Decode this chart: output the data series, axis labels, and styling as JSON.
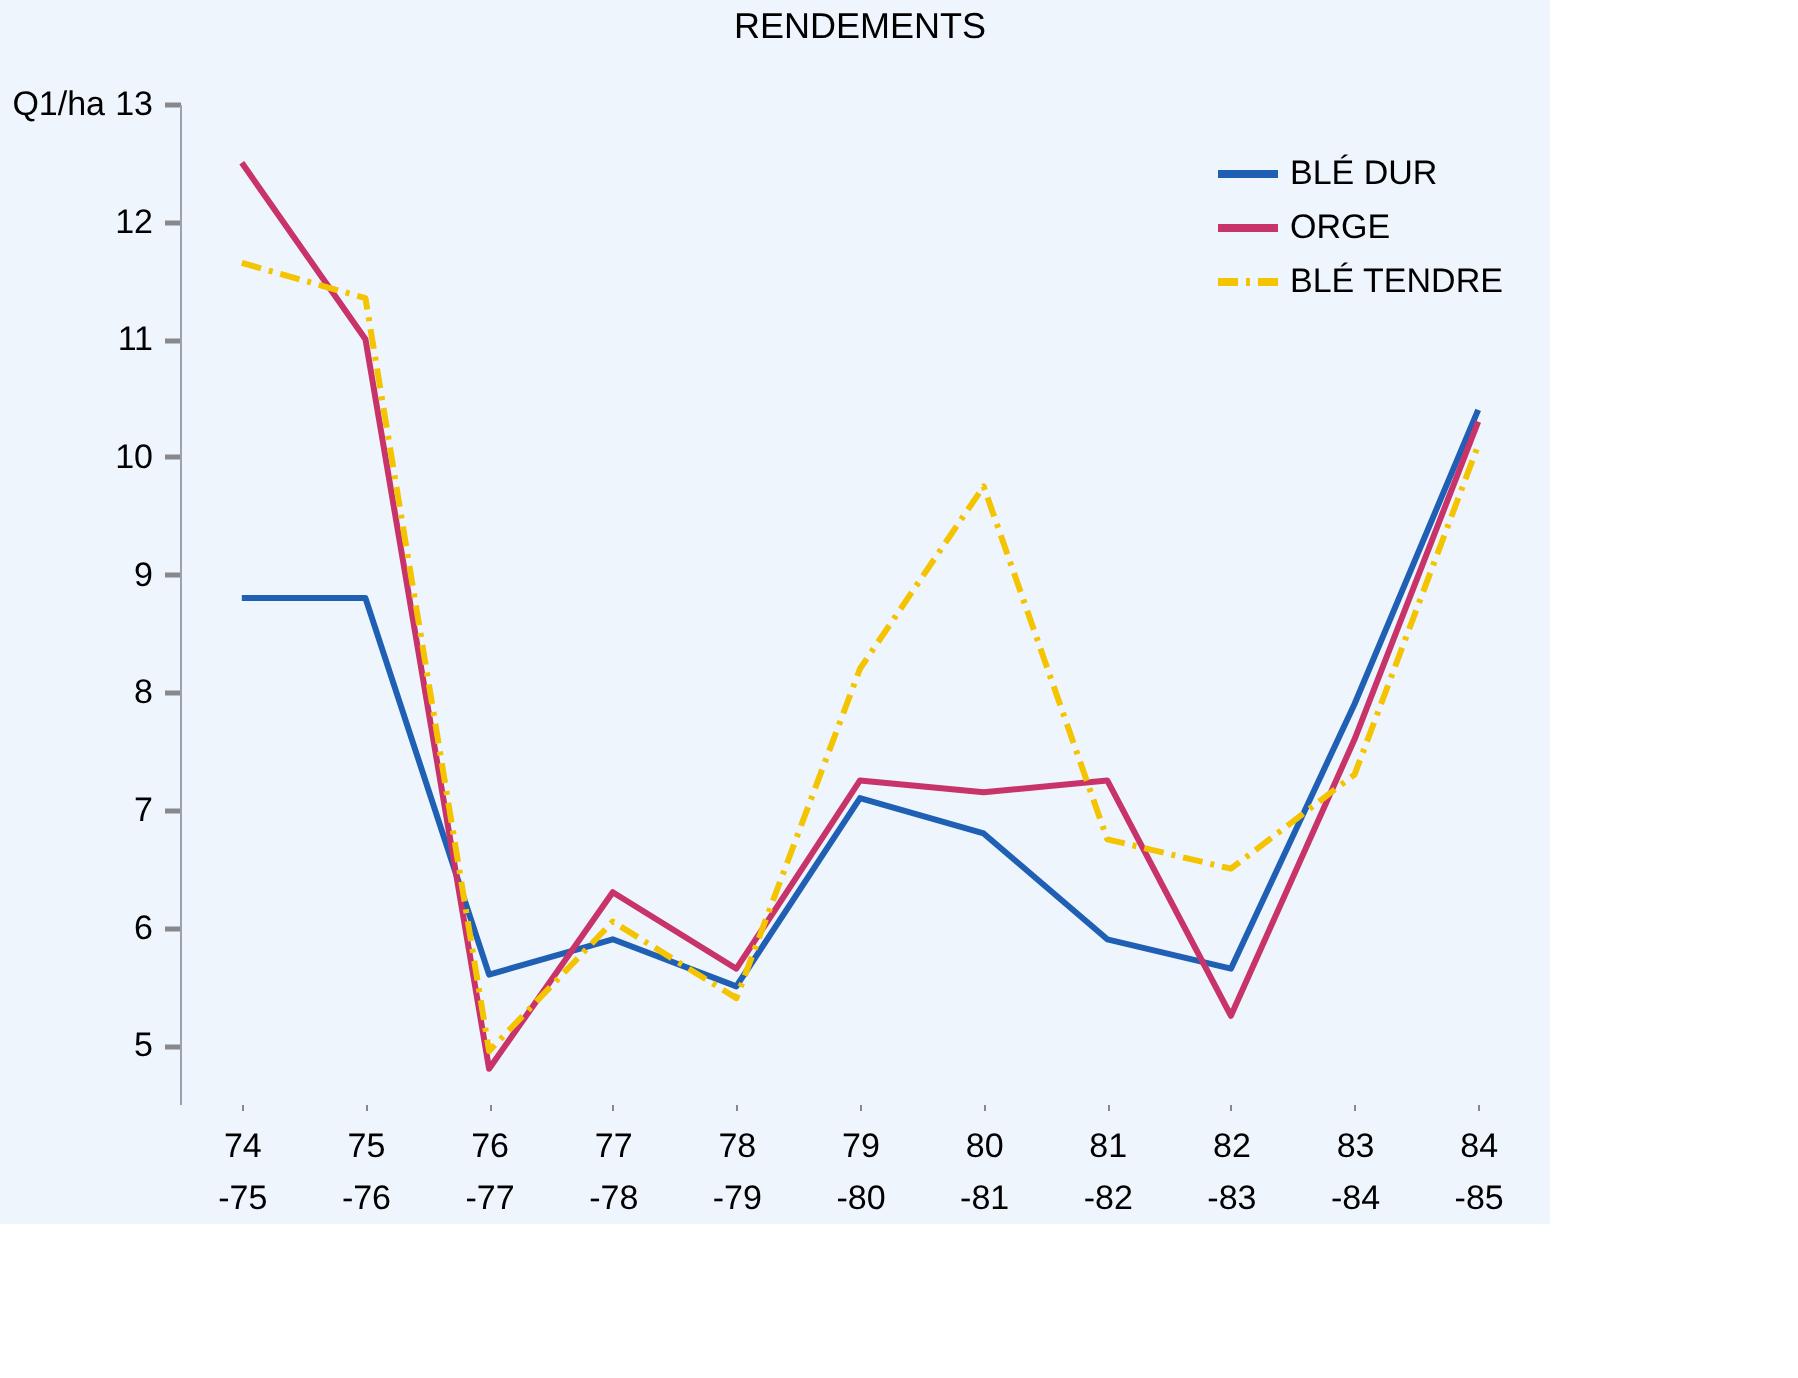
{
  "chart_data": {
    "type": "line",
    "title": "RENDEMENTS",
    "ylabel": "Q1/ha",
    "categories": [
      "74\n-75",
      "75\n-76",
      "76\n-77",
      "77\n-78",
      "78\n-79",
      "79\n-80",
      "80\n-81",
      "81\n-82",
      "82\n-83",
      "83\n-84",
      "84\n-85"
    ],
    "series": [
      {
        "name": "BLÉ DUR",
        "color": "#1f5fb4",
        "line_style": "solid",
        "values": [
          8.8,
          8.8,
          5.6,
          5.9,
          5.5,
          7.1,
          6.8,
          5.9,
          5.65,
          7.9,
          10.4
        ]
      },
      {
        "name": "ORGE",
        "color": "#c8336a",
        "line_style": "solid",
        "values": [
          12.5,
          11.0,
          4.8,
          6.3,
          5.65,
          7.25,
          7.15,
          7.25,
          5.25,
          7.6,
          10.3
        ]
      },
      {
        "name": "BLÉ TENDRE",
        "color": "#f5c400",
        "line_style": "dashed",
        "values": [
          11.65,
          11.35,
          4.95,
          6.05,
          5.4,
          8.2,
          9.75,
          6.75,
          6.5,
          7.3,
          10.1
        ]
      }
    ],
    "ylim": [
      4.5,
      13
    ],
    "yticks": [
      5,
      6,
      7,
      8,
      9,
      10,
      11,
      12,
      13
    ],
    "grid": false,
    "legend": "top right",
    "marker": "none"
  }
}
